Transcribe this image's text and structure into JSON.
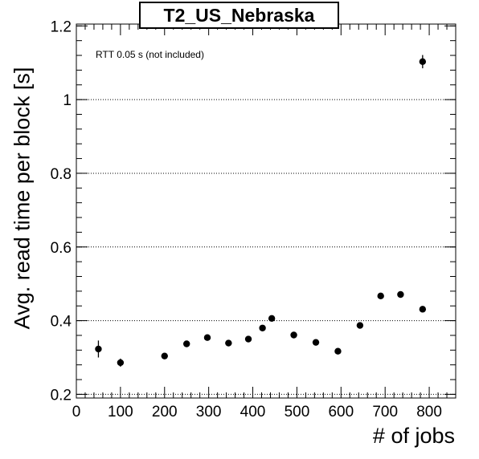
{
  "chart_data": {
    "type": "scatter",
    "title": "T2_US_Nebraska",
    "annotation": "RTT 0.05 s (not included)",
    "xlabel": "# of jobs",
    "ylabel": "Avg. read time per block [s]",
    "xlim": [
      0,
      860
    ],
    "ylim": [
      0.19,
      1.205
    ],
    "x_ticks": [
      0,
      100,
      200,
      300,
      400,
      500,
      600,
      700,
      800
    ],
    "y_ticks": [
      0.2,
      0.4,
      0.6,
      0.8,
      1,
      1.2
    ],
    "y_tick_labels": [
      "0.2",
      "0.4",
      "0.6",
      "0.8",
      "1",
      "1.2"
    ],
    "grid": "horizontal dotted",
    "points": [
      {
        "x": 50,
        "y": 0.323,
        "err": 0.023
      },
      {
        "x": 100,
        "y": 0.286,
        "err": 0.011
      },
      {
        "x": 200,
        "y": 0.304,
        "err": 0.007
      },
      {
        "x": 250,
        "y": 0.337,
        "err": 0.008
      },
      {
        "x": 297,
        "y": 0.354,
        "err": 0.006
      },
      {
        "x": 345,
        "y": 0.339,
        "err": 0.006
      },
      {
        "x": 390,
        "y": 0.35,
        "err": 0.006
      },
      {
        "x": 422,
        "y": 0.38,
        "err": 0.006
      },
      {
        "x": 443,
        "y": 0.406,
        "err": 0.006
      },
      {
        "x": 493,
        "y": 0.361,
        "err": 0.006
      },
      {
        "x": 543,
        "y": 0.341,
        "err": 0.006
      },
      {
        "x": 593,
        "y": 0.317,
        "err": 0.006
      },
      {
        "x": 643,
        "y": 0.387,
        "err": 0.006
      },
      {
        "x": 690,
        "y": 0.467,
        "err": 0.008
      },
      {
        "x": 735,
        "y": 0.471,
        "err": 0.006
      },
      {
        "x": 785,
        "y": 0.431,
        "err": 0.006
      },
      {
        "x": 785,
        "y": 1.103,
        "err": 0.018
      }
    ]
  }
}
